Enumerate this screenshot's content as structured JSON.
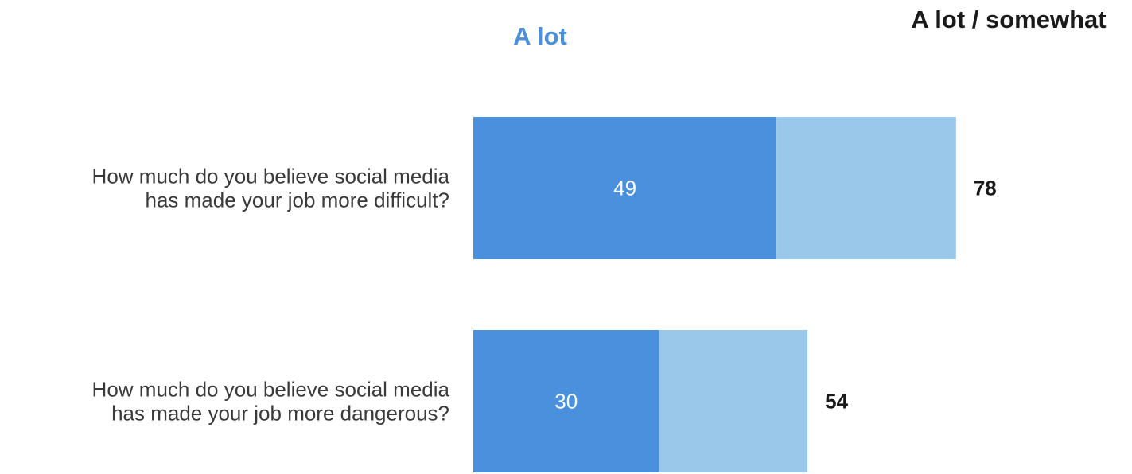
{
  "chart_data": {
    "type": "bar",
    "orientation": "horizontal",
    "stacked": true,
    "column_headers": {
      "a_lot": "A lot",
      "total": "A lot / somewhat"
    },
    "categories": [
      [
        "How much do you believe social media",
        "has made your job more difficult?"
      ],
      [
        "How much do you believe social media",
        "has made your job more dangerous?"
      ]
    ],
    "series": [
      {
        "values": [
          49,
          30
        ],
        "color": "#4a90dc"
      },
      {
        "values": [
          29,
          24
        ],
        "color": "#99c8ea"
      }
    ],
    "totals": [
      78,
      54
    ],
    "xlim": [
      0,
      100
    ],
    "colors": {
      "a_lot_header": "#4a90dc",
      "total_header": "#1a1a1a"
    }
  }
}
